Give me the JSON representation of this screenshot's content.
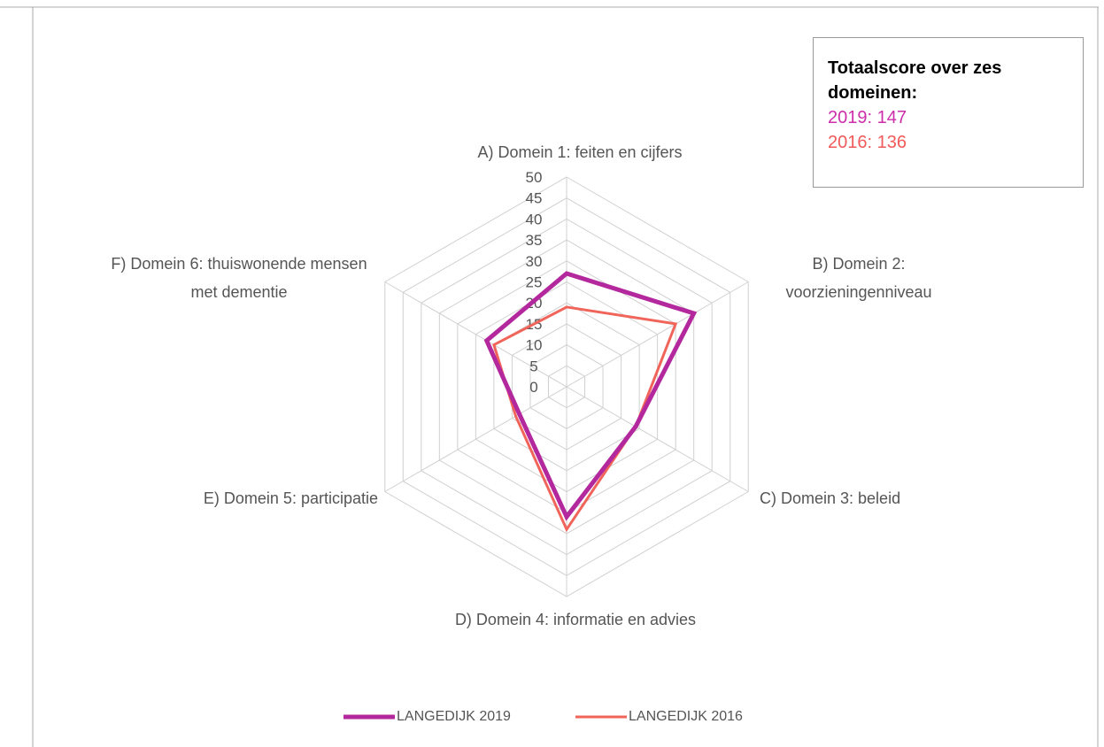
{
  "chart_data": {
    "type": "radar",
    "categories": [
      "A) Domein 1: feiten en cijfers",
      "B) Domein 2: voorzieningenniveau",
      "C) Domein 3: beleid",
      "D) Domein 4: informatie en advies",
      "E) Domein 5: participatie",
      "F) Domein 6: thuiswonende mensen met dementie"
    ],
    "series": [
      {
        "name": "LANGEDIJK 2019",
        "color": "#b4289e",
        "values": [
          27,
          35,
          19,
          31,
          13,
          22
        ]
      },
      {
        "name": "LANGEDIJK 2016",
        "color": "#f0645a",
        "values": [
          19,
          30,
          19,
          34,
          14,
          20
        ]
      }
    ],
    "ylim": [
      0,
      50
    ],
    "yticks": [
      0,
      5,
      10,
      15,
      20,
      25,
      30,
      35,
      40,
      45,
      50
    ],
    "grid": true,
    "legend": "bottom"
  },
  "textbox": {
    "title": "Totaalscore over zes domeinen:",
    "lines": [
      {
        "text": "2019: 147",
        "color": "#cc2eaa"
      },
      {
        "text": "2016: 136",
        "color": "#f05a5a"
      }
    ]
  }
}
